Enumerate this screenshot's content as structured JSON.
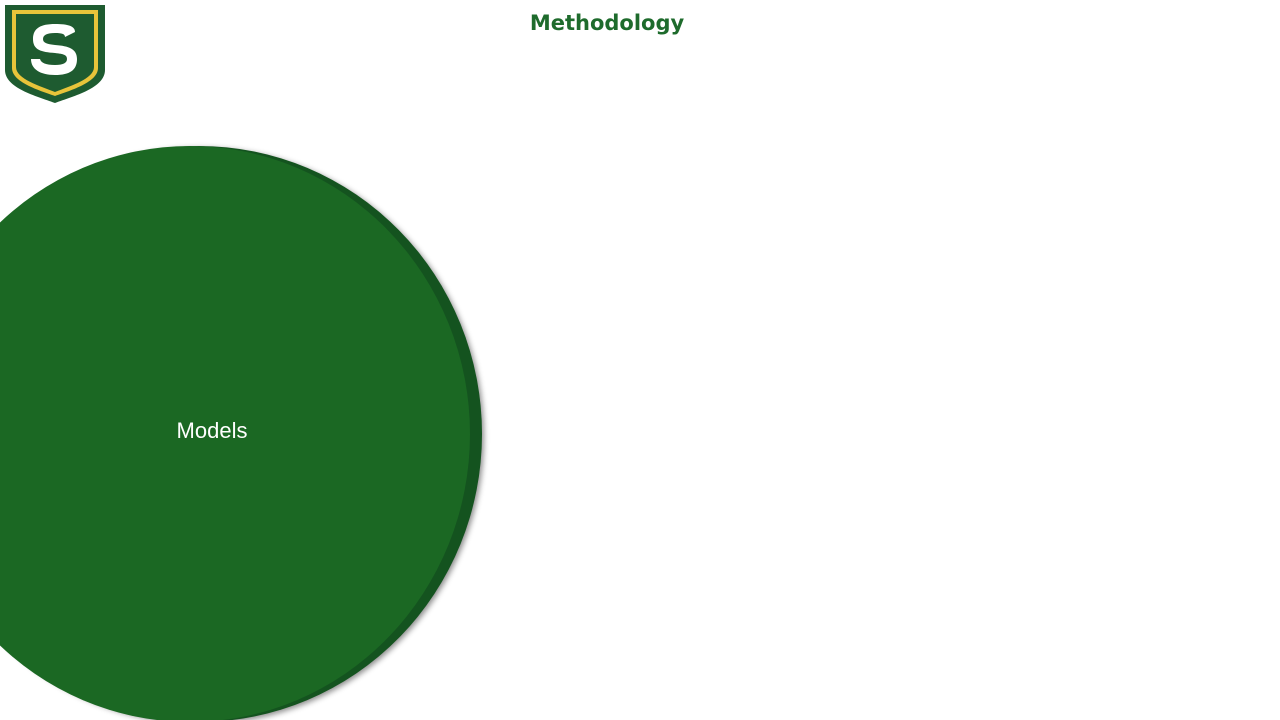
{
  "slide": {
    "title": "Methodology",
    "logo": {
      "letter": "S",
      "icon": "shield-s-logo-icon",
      "colors": {
        "shield": "#1e5b30",
        "border": "#e8c43a",
        "inner": "#1e5b30",
        "letter": "#ffffff"
      }
    },
    "diagram": {
      "circle_label": "Models",
      "circle_color": "#1b6823"
    }
  }
}
